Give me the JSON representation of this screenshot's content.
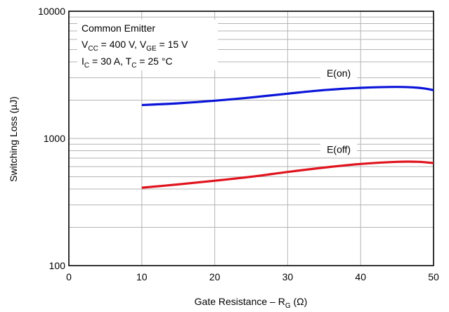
{
  "chart_data": {
    "type": "line",
    "title": "",
    "xlabel": {
      "main": "Gate Resistance – R",
      "sub": "G",
      "unit": " (Ω)"
    },
    "ylabel": "Switching Loss (µJ)",
    "xlim": [
      0,
      50
    ],
    "ylim": [
      100,
      10000
    ],
    "yscale": "log",
    "grid": true,
    "x_ticks": [
      "0",
      "10",
      "20",
      "30",
      "40",
      "50"
    ],
    "y_ticks": [
      "100",
      "1000",
      "10000"
    ],
    "annotation": {
      "line1": "Common Emitter",
      "line2": [
        {
          "t": "V"
        },
        {
          "t": "CC",
          "sub": true
        },
        {
          "t": " = 400 V, V"
        },
        {
          "t": "GE",
          "sub": true
        },
        {
          "t": " = 15 V"
        }
      ],
      "line3": [
        {
          "t": "I"
        },
        {
          "t": "C",
          "sub": true
        },
        {
          "t": " = 30 A, T"
        },
        {
          "t": "C",
          "sub": true
        },
        {
          "t": " = 25 °C"
        }
      ]
    },
    "series": [
      {
        "name": "E(on)",
        "color": "#0a14d8",
        "x": [
          10,
          15,
          20,
          25,
          30,
          35,
          40,
          45,
          48,
          50
        ],
        "values": [
          1830,
          1890,
          1980,
          2100,
          2250,
          2400,
          2500,
          2540,
          2500,
          2400
        ]
      },
      {
        "name": "E(off)",
        "color": "#e0141e",
        "x": [
          10,
          15,
          20,
          25,
          30,
          35,
          40,
          45,
          48,
          50
        ],
        "values": [
          410,
          435,
          465,
          500,
          545,
          590,
          630,
          655,
          655,
          640
        ]
      }
    ]
  }
}
